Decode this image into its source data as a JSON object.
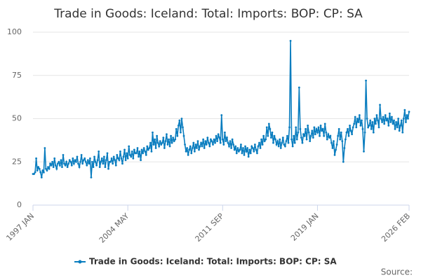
{
  "chart_data": {
    "type": "line",
    "title": "Trade in Goods: Iceland: Total: Imports: BOP: CP: SA",
    "source_label": "Source:",
    "x": [
      "1997 JAN",
      "1997 FEB",
      "1997 MAR",
      "1997 APR",
      "1997 MAY",
      "1997 JUN",
      "1997 JUL",
      "1997 AUG",
      "1997 SEP",
      "1997 OCT",
      "1997 NOV",
      "1997 DEC",
      "1998 JAN",
      "1998 FEB",
      "1998 MAR",
      "1998 APR",
      "1998 MAY",
      "1998 JUN",
      "1998 JUL",
      "1998 AUG",
      "1998 SEP",
      "1998 OCT",
      "1998 NOV",
      "1998 DEC",
      "1999 JAN",
      "1999 FEB",
      "1999 MAR",
      "1999 APR",
      "1999 MAY",
      "1999 JUN",
      "1999 JUL",
      "1999 AUG",
      "1999 SEP",
      "1999 OCT",
      "1999 NOV",
      "1999 DEC",
      "2000 JAN",
      "2000 FEB",
      "2000 MAR",
      "2000 APR",
      "2000 MAY",
      "2000 JUN",
      "2000 JUL",
      "2000 AUG",
      "2000 SEP",
      "2000 OCT",
      "2000 NOV",
      "2000 DEC",
      "2001 JAN",
      "2001 FEB",
      "2001 MAR",
      "2001 APR",
      "2001 MAY",
      "2001 JUN",
      "2001 JUL",
      "2001 AUG",
      "2001 SEP",
      "2001 OCT",
      "2001 NOV",
      "2001 DEC",
      "2002 JAN",
      "2002 FEB",
      "2002 MAR",
      "2002 APR",
      "2002 MAY",
      "2002 JUN",
      "2002 JUL",
      "2002 AUG",
      "2002 SEP",
      "2002 OCT",
      "2002 NOV",
      "2002 DEC",
      "2003 JAN",
      "2003 FEB",
      "2003 MAR",
      "2003 APR",
      "2003 MAY",
      "2003 JUN",
      "2003 JUL",
      "2003 AUG",
      "2003 SEP",
      "2003 OCT",
      "2003 NOV",
      "2003 DEC",
      "2004 JAN",
      "2004 FEB",
      "2004 MAR",
      "2004 APR",
      "2004 MAY",
      "2004 JUN",
      "2004 JUL",
      "2004 AUG",
      "2004 SEP",
      "2004 OCT",
      "2004 NOV",
      "2004 DEC",
      "2005 JAN",
      "2005 FEB",
      "2005 MAR",
      "2005 APR",
      "2005 MAY",
      "2005 JUN",
      "2005 JUL",
      "2005 AUG",
      "2005 SEP",
      "2005 OCT",
      "2005 NOV",
      "2005 DEC",
      "2006 JAN",
      "2006 FEB",
      "2006 MAR",
      "2006 APR",
      "2006 MAY",
      "2006 JUN",
      "2006 JUL",
      "2006 AUG",
      "2006 SEP",
      "2006 OCT",
      "2006 NOV",
      "2006 DEC",
      "2007 JAN",
      "2007 FEB",
      "2007 MAR",
      "2007 APR",
      "2007 MAY",
      "2007 JUN",
      "2007 JUL",
      "2007 AUG",
      "2007 SEP",
      "2007 OCT",
      "2007 NOV",
      "2007 DEC",
      "2008 JAN",
      "2008 FEB",
      "2008 MAR",
      "2008 APR",
      "2008 MAY",
      "2008 JUN",
      "2008 JUL",
      "2008 AUG",
      "2008 SEP",
      "2008 OCT",
      "2008 NOV",
      "2008 DEC",
      "2009 JAN",
      "2009 FEB",
      "2009 MAR",
      "2009 APR",
      "2009 MAY",
      "2009 JUN",
      "2009 JUL",
      "2009 AUG",
      "2009 SEP",
      "2009 OCT",
      "2009 NOV",
      "2009 DEC",
      "2010 JAN",
      "2010 FEB",
      "2010 MAR",
      "2010 APR",
      "2010 MAY",
      "2010 JUN",
      "2010 JUL",
      "2010 AUG",
      "2010 SEP",
      "2010 OCT",
      "2010 NOV",
      "2010 DEC",
      "2011 JAN",
      "2011 FEB",
      "2011 MAR",
      "2011 APR",
      "2011 MAY",
      "2011 JUN",
      "2011 JUL",
      "2011 AUG",
      "2011 SEP",
      "2011 OCT",
      "2011 NOV",
      "2011 DEC",
      "2012 JAN",
      "2012 FEB",
      "2012 MAR",
      "2012 APR",
      "2012 MAY",
      "2012 JUN",
      "2012 JUL",
      "2012 AUG",
      "2012 SEP",
      "2012 OCT",
      "2012 NOV",
      "2012 DEC",
      "2013 JAN",
      "2013 FEB",
      "2013 MAR",
      "2013 APR",
      "2013 MAY",
      "2013 JUN",
      "2013 JUL",
      "2013 AUG",
      "2013 SEP",
      "2013 OCT",
      "2013 NOV",
      "2013 DEC",
      "2014 JAN",
      "2014 FEB",
      "2014 MAR",
      "2014 APR",
      "2014 MAY",
      "2014 JUN",
      "2014 JUL",
      "2014 AUG",
      "2014 SEP",
      "2014 OCT",
      "2014 NOV",
      "2014 DEC",
      "2015 JAN",
      "2015 FEB",
      "2015 MAR",
      "2015 APR",
      "2015 MAY",
      "2015 JUN",
      "2015 JUL",
      "2015 AUG",
      "2015 SEP",
      "2015 OCT",
      "2015 NOV",
      "2015 DEC",
      "2016 JAN",
      "2016 FEB",
      "2016 MAR",
      "2016 APR",
      "2016 MAY",
      "2016 JUN",
      "2016 JUL",
      "2016 AUG",
      "2016 SEP",
      "2016 OCT",
      "2016 NOV",
      "2016 DEC",
      "2017 JAN",
      "2017 FEB",
      "2017 MAR",
      "2017 APR",
      "2017 MAY",
      "2017 JUN",
      "2017 JUL",
      "2017 AUG",
      "2017 SEP",
      "2017 OCT",
      "2017 NOV",
      "2017 DEC",
      "2018 JAN",
      "2018 FEB",
      "2018 MAR",
      "2018 APR",
      "2018 MAY",
      "2018 JUN",
      "2018 JUL",
      "2018 AUG",
      "2018 SEP",
      "2018 OCT",
      "2018 NOV",
      "2018 DEC",
      "2019 JAN",
      "2019 FEB",
      "2019 MAR",
      "2019 APR",
      "2019 MAY",
      "2019 JUN",
      "2019 JUL",
      "2019 AUG",
      "2019 SEP",
      "2019 OCT",
      "2019 NOV",
      "2019 DEC",
      "2020 JAN",
      "2020 FEB",
      "2020 MAR",
      "2020 APR",
      "2020 MAY",
      "2020 JUN",
      "2020 JUL",
      "2020 AUG",
      "2020 SEP",
      "2020 OCT",
      "2020 NOV",
      "2020 DEC",
      "2021 JAN",
      "2021 FEB",
      "2021 MAR",
      "2021 APR",
      "2021 MAY",
      "2021 JUN",
      "2021 JUL",
      "2021 AUG",
      "2021 SEP",
      "2021 OCT",
      "2021 NOV",
      "2021 DEC",
      "2022 JAN",
      "2022 FEB",
      "2022 MAR",
      "2022 APR",
      "2022 MAY",
      "2022 JUN",
      "2022 JUL",
      "2022 AUG",
      "2022 SEP",
      "2022 OCT",
      "2022 NOV",
      "2022 DEC",
      "2023 JAN",
      "2023 FEB",
      "2023 MAR",
      "2023 APR",
      "2023 MAY",
      "2023 JUN",
      "2023 JUL",
      "2023 AUG",
      "2023 SEP",
      "2023 OCT",
      "2023 NOV",
      "2023 DEC",
      "2024 JAN",
      "2024 FEB",
      "2024 MAR",
      "2024 APR",
      "2024 MAY",
      "2024 JUN",
      "2024 JUL",
      "2024 AUG",
      "2024 SEP",
      "2024 OCT",
      "2024 NOV",
      "2024 DEC",
      "2025 JAN",
      "2025 FEB",
      "2025 MAR",
      "2025 APR",
      "2025 MAY",
      "2025 JUN",
      "2025 JUL",
      "2025 AUG",
      "2025 SEP",
      "2025 OCT",
      "2025 NOV",
      "2025 DEC",
      "2026 JAN",
      "2026 FEB"
    ],
    "series": [
      {
        "name": "Trade in Goods: Iceland: Total: Imports: BOP: CP: SA",
        "color": "#0a7dbf",
        "values": [
          18,
          18,
          19,
          27,
          20,
          22,
          21,
          19,
          16,
          20,
          19,
          33,
          21,
          20,
          22,
          21,
          24,
          23,
          25,
          22,
          27,
          23,
          21,
          24,
          25,
          23,
          26,
          22,
          29,
          24,
          23,
          25,
          22,
          24,
          26,
          25,
          23,
          27,
          24,
          26,
          25,
          28,
          24,
          22,
          25,
          29,
          24,
          26,
          27,
          25,
          23,
          26,
          24,
          27,
          16,
          25,
          22,
          28,
          25,
          23,
          26,
          31,
          22,
          25,
          27,
          24,
          28,
          22,
          26,
          30,
          21,
          25,
          25,
          27,
          24,
          28,
          26,
          23,
          29,
          27,
          26,
          31,
          27,
          24,
          28,
          32,
          26,
          30,
          27,
          34,
          29,
          28,
          31,
          27,
          32,
          30,
          30,
          33,
          28,
          31,
          26,
          32,
          30,
          33,
          31,
          29,
          34,
          32,
          33,
          36,
          31,
          42,
          35,
          38,
          33,
          40,
          36,
          34,
          37,
          35,
          36,
          39,
          33,
          37,
          41,
          35,
          38,
          34,
          40,
          36,
          39,
          37,
          38,
          44,
          40,
          46,
          49,
          42,
          50,
          45,
          40,
          35,
          31,
          33,
          29,
          32,
          34,
          30,
          33,
          36,
          31,
          35,
          33,
          37,
          32,
          34,
          36,
          34,
          38,
          33,
          37,
          35,
          39,
          36,
          34,
          38,
          37,
          35,
          38,
          36,
          40,
          37,
          41,
          39,
          36,
          52,
          38,
          35,
          42,
          37,
          39,
          36,
          34,
          37,
          33,
          38,
          35,
          32,
          34,
          30,
          33,
          31,
          32,
          35,
          30,
          33,
          29,
          34,
          31,
          33,
          28,
          32,
          30,
          34,
          33,
          31,
          35,
          32,
          30,
          34,
          36,
          33,
          38,
          35,
          40,
          37,
          38,
          45,
          40,
          47,
          44,
          39,
          42,
          36,
          40,
          38,
          35,
          37,
          34,
          38,
          33,
          36,
          39,
          35,
          34,
          37,
          40,
          36,
          45,
          95,
          38,
          34,
          40,
          36,
          45,
          38,
          42,
          68,
          44,
          39,
          36,
          41,
          40,
          44,
          38,
          46,
          42,
          37,
          40,
          43,
          39,
          45,
          41,
          44,
          42,
          45,
          40,
          46,
          43,
          44,
          40,
          47,
          42,
          38,
          41,
          39,
          40,
          36,
          33,
          37,
          29,
          32,
          35,
          40,
          44,
          38,
          42,
          37,
          25,
          33,
          38,
          42,
          44,
          40,
          46,
          43,
          41,
          45,
          47,
          51,
          45,
          50,
          48,
          52,
          46,
          49,
          44,
          31,
          42,
          72,
          50,
          45,
          46,
          49,
          44,
          48,
          42,
          50,
          47,
          52,
          49,
          45,
          58,
          50,
          48,
          51,
          47,
          52,
          49,
          50,
          46,
          53,
          48,
          51,
          47,
          49,
          44,
          48,
          45,
          50,
          43,
          46,
          49,
          42,
          50,
          55,
          48,
          52,
          50,
          54
        ]
      }
    ],
    "xticks": [
      "1997 JAN",
      "2004 MAY",
      "2011 SEP",
      "2019 JAN",
      "2026 FEB"
    ],
    "ylim": [
      0,
      100
    ],
    "yticks": [
      0,
      25,
      50,
      75,
      100
    ],
    "grid": true
  }
}
